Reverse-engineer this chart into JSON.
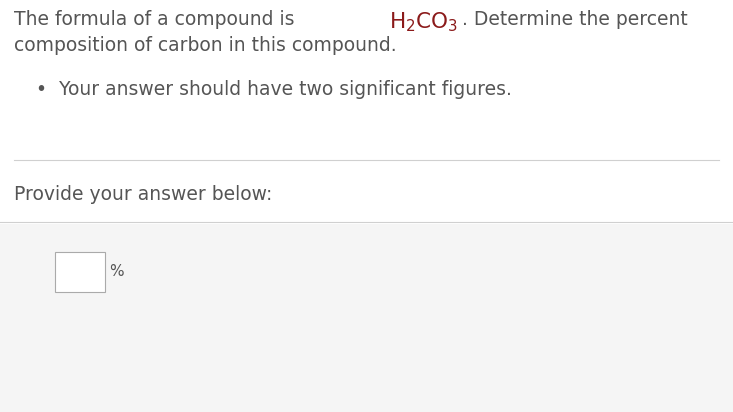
{
  "bg_color": "#ffffff",
  "text_color": "#555555",
  "formula_color": "#8b1a1a",
  "line1_prefix": "The formula of a compound is ",
  "formula": "H₂CO₃",
  "line1_suffix": ". Determine the percent",
  "line2": "composition of carbon in this compound.",
  "bullet_text": "•  Your answer should have two significant figures.",
  "provide_text": "Provide your answer below:",
  "percent_label": "%",
  "sep_color": "#d0d0d0",
  "main_fontsize": 13.5,
  "formula_fontsize": 15.5,
  "bullet_fontsize": 13.5,
  "provide_fontsize": 13.5,
  "percent_fontsize": 11
}
